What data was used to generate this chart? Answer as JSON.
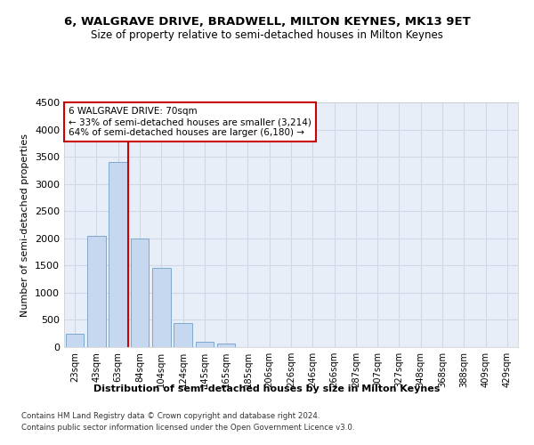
{
  "title": "6, WALGRAVE DRIVE, BRADWELL, MILTON KEYNES, MK13 9ET",
  "subtitle": "Size of property relative to semi-detached houses in Milton Keynes",
  "xlabel": "Distribution of semi-detached houses by size in Milton Keynes",
  "ylabel": "Number of semi-detached properties",
  "footnote1": "Contains HM Land Registry data © Crown copyright and database right 2024.",
  "footnote2": "Contains public sector information licensed under the Open Government Licence v3.0.",
  "bar_labels": [
    "23sqm",
    "43sqm",
    "63sqm",
    "84sqm",
    "104sqm",
    "124sqm",
    "145sqm",
    "165sqm",
    "185sqm",
    "206sqm",
    "226sqm",
    "246sqm",
    "266sqm",
    "287sqm",
    "307sqm",
    "327sqm",
    "348sqm",
    "368sqm",
    "388sqm",
    "409sqm",
    "429sqm"
  ],
  "bar_values": [
    250,
    2050,
    3400,
    2000,
    1450,
    450,
    100,
    60,
    0,
    0,
    0,
    0,
    0,
    0,
    0,
    0,
    0,
    0,
    0,
    0,
    0
  ],
  "bar_color": "#c5d8f0",
  "bar_edge_color": "#7fa8cc",
  "property_line_x": 2.45,
  "property_sqm": 70,
  "pct_smaller": 33,
  "n_smaller": "3,214",
  "pct_larger": 64,
  "n_larger": "6,180",
  "annotation_box_color": "#ffffff",
  "annotation_box_edge": "#cc0000",
  "vline_color": "#cc0000",
  "ylim": [
    0,
    4500
  ],
  "yticks": [
    0,
    500,
    1000,
    1500,
    2000,
    2500,
    3000,
    3500,
    4000,
    4500
  ],
  "grid_color": "#d0d8e8",
  "bg_color": "#e8eef8"
}
